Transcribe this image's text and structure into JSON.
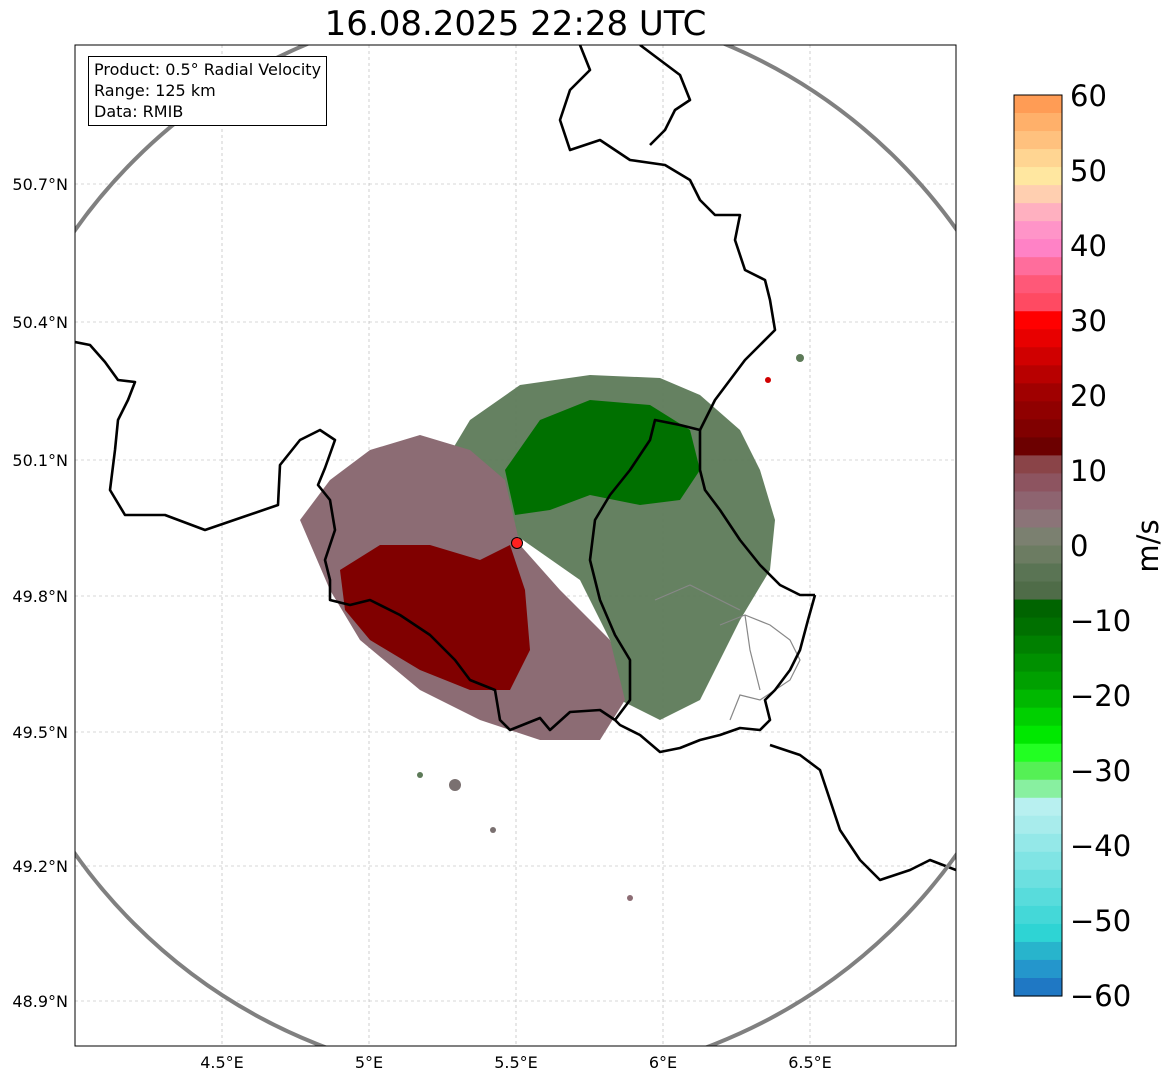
{
  "title": "16.08.2025 22:28 UTC",
  "info": {
    "product": "Product: 0.5° Radial Velocity",
    "range": "Range: 125 km",
    "source": "Data: RMIB"
  },
  "axes": {
    "lat_ticks": [
      "50.7°N",
      "50.4°N",
      "50.1°N",
      "49.8°N",
      "49.5°N",
      "49.2°N",
      "48.9°N"
    ],
    "lon_ticks": [
      "4.5°E",
      "5°E",
      "5.5°E",
      "6°E",
      "6.5°E"
    ]
  },
  "colorbar": {
    "label": "m/s",
    "ticks": [
      "60",
      "50",
      "40",
      "30",
      "20",
      "10",
      "0",
      "−10",
      "−20",
      "−30",
      "−40",
      "−50",
      "−60"
    ],
    "colors": [
      "#ff9c55",
      "#ffb06a",
      "#ffc17e",
      "#ffd592",
      "#ffe7a0",
      "#ffcfb0",
      "#ffb0c0",
      "#ff94c8",
      "#ff82c6",
      "#ff6d9c",
      "#ff5878",
      "#ff4a62",
      "#ff0000",
      "#e80000",
      "#d00000",
      "#b80000",
      "#a00000",
      "#900000",
      "#800000",
      "#6c0000",
      "#8a4448",
      "#8d5460",
      "#8e6470",
      "#8b7478",
      "#7b8070",
      "#6c7c62",
      "#5a7454",
      "#4f6c48",
      "#006400",
      "#007000",
      "#008000",
      "#009000",
      "#00a000",
      "#00b800",
      "#00d000",
      "#00e800",
      "#22ff22",
      "#55f055",
      "#88f0a0",
      "#b8f0f0",
      "#a8ecec",
      "#94e8e8",
      "#80e4e4",
      "#6ce0e0",
      "#58dcdc",
      "#44d8d8",
      "#2ed4d4",
      "#28b4cc",
      "#2496cc",
      "#1f78c4"
    ]
  },
  "radar_site": {
    "color": "#ff2020"
  },
  "colors": {
    "range_ring": "#808080",
    "border": "#000000",
    "admin_border": "#888888"
  }
}
